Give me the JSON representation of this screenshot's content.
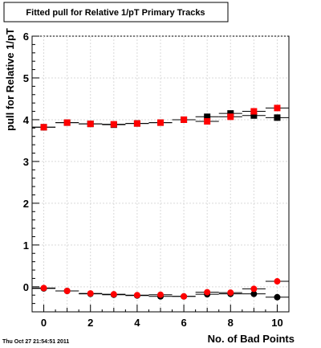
{
  "title": "Fitted pull for Relative 1/pT Primary Tracks",
  "timestamp": "Thu Oct 27 21:54:51 2011",
  "colors": {
    "background": "#ffffff",
    "axis": "#000000",
    "grid": "#d9d9d9",
    "series_black": "#000000",
    "series_red": "#ff0000"
  },
  "chart_data": {
    "type": "scatter",
    "title": "Fitted pull for Relative 1/pT Primary Tracks",
    "xlabel": "No. of Bad Points",
    "ylabel": "pull for Relative 1/pT",
    "xlim": [
      -0.5,
      10.5
    ],
    "ylim": [
      -0.6,
      6
    ],
    "x_ticks": [
      0,
      2,
      4,
      6,
      8,
      10
    ],
    "y_ticks": [
      0,
      1,
      2,
      3,
      4,
      5,
      6
    ],
    "grid": true,
    "x_error_half_width": 0.5,
    "groups": [
      {
        "marker": "square",
        "series": [
          {
            "color": "#000000",
            "x": [
              0,
              1,
              2,
              3,
              4,
              5,
              6,
              7,
              8,
              9,
              10
            ],
            "y": [
              3.82,
              3.93,
              3.9,
              3.88,
              3.91,
              3.93,
              4.0,
              4.07,
              4.15,
              4.1,
              4.05
            ]
          },
          {
            "color": "#ff0000",
            "x": [
              0,
              1,
              2,
              3,
              4,
              5,
              6,
              7,
              8,
              9,
              10
            ],
            "y": [
              3.82,
              3.93,
              3.9,
              3.89,
              3.91,
              3.93,
              4.0,
              3.96,
              4.07,
              4.2,
              4.28
            ]
          }
        ]
      },
      {
        "marker": "circle",
        "series": [
          {
            "color": "#000000",
            "x": [
              0,
              1,
              2,
              3,
              4,
              5,
              6,
              7,
              8,
              9,
              10
            ],
            "y": [
              -0.04,
              -0.1,
              -0.17,
              -0.19,
              -0.21,
              -0.23,
              -0.23,
              -0.18,
              -0.17,
              -0.17,
              -0.25
            ]
          },
          {
            "color": "#ff0000",
            "x": [
              0,
              1,
              2,
              3,
              4,
              5,
              6,
              7,
              8,
              9,
              10
            ],
            "y": [
              -0.03,
              -0.1,
              -0.16,
              -0.18,
              -0.2,
              -0.19,
              -0.23,
              -0.13,
              -0.14,
              -0.05,
              0.13
            ]
          }
        ]
      }
    ]
  }
}
